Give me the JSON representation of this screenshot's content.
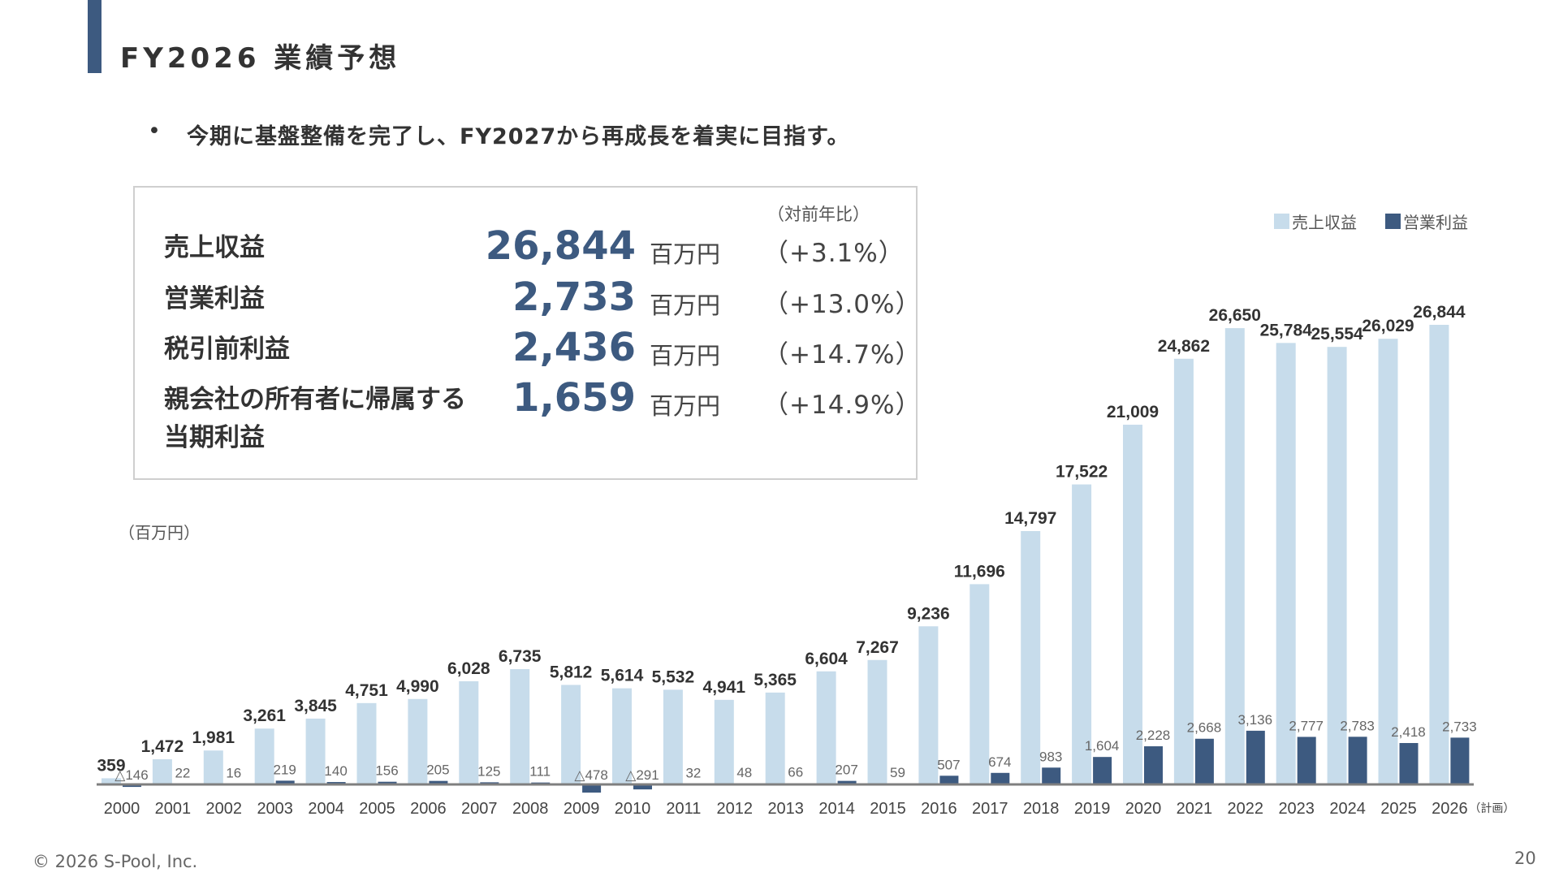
{
  "header": {
    "title": "FY2026 業績予想"
  },
  "bullet": {
    "marker": "•",
    "text": "今期に基盤整備を完了し、FY2027から再成長を着実に目指す。"
  },
  "summary": {
    "yoy_header": "（対前年比）",
    "rows": [
      {
        "label": "売上収益",
        "value": "26,844",
        "unit": "百万円",
        "yoy": "（+3.1%）"
      },
      {
        "label": "営業利益",
        "value": "2,733",
        "unit": "百万円",
        "yoy": "（+13.0%）"
      },
      {
        "label": "税引前利益",
        "value": "2,436",
        "unit": "百万円",
        "yoy": "（+14.7%）"
      },
      {
        "label": "親会社の所有者に帰属する",
        "label2": "当期利益",
        "value": "1,659",
        "unit": "百万円",
        "yoy": "（+14.9%）"
      }
    ]
  },
  "chart_data": {
    "type": "bar",
    "unit_label": "（百万円）",
    "categories": [
      "2000",
      "2001",
      "2002",
      "2003",
      "2004",
      "2005",
      "2006",
      "2007",
      "2008",
      "2009",
      "2010",
      "2011",
      "2012",
      "2013",
      "2014",
      "2015",
      "2016",
      "2017",
      "2018",
      "2019",
      "2020",
      "2021",
      "2022",
      "2023",
      "2024",
      "2025",
      "2026"
    ],
    "last_category_note": "（計画）",
    "legend_position": "top-right",
    "grid": false,
    "series": [
      {
        "name": "売上収益",
        "color": "#c7dceb",
        "values": [
          359,
          1472,
          1981,
          3261,
          3845,
          4751,
          4990,
          6028,
          6735,
          5812,
          5614,
          5532,
          4941,
          5365,
          6604,
          7267,
          9236,
          11696,
          14797,
          17522,
          21009,
          24862,
          26650,
          25784,
          25554,
          26029,
          26844
        ],
        "labels": [
          "359",
          "1,472",
          "1,981",
          "3,261",
          "3,845",
          "4,751",
          "4,990",
          "6,028",
          "6,735",
          "5,812",
          "5,614",
          "5,532",
          "4,941",
          "5,365",
          "6,604",
          "7,267",
          "9,236",
          "11,696",
          "14,797",
          "17,522",
          "21,009",
          "24,862",
          "26,650",
          "25,784",
          "25,554",
          "26,029",
          "26,844"
        ]
      },
      {
        "name": "営業利益",
        "color": "#3d5a80",
        "values": [
          -146,
          22,
          16,
          219,
          140,
          156,
          205,
          125,
          111,
          -478,
          -291,
          32,
          48,
          66,
          207,
          59,
          507,
          674,
          983,
          1604,
          2228,
          2668,
          3136,
          2777,
          2783,
          2418,
          2733
        ],
        "labels": [
          "△146",
          "22",
          "16",
          "219",
          "140",
          "156",
          "205",
          "125",
          "111",
          "△478",
          "△291",
          "32",
          "48",
          "66",
          "207",
          "59",
          "507",
          "674",
          "983",
          "1,604",
          "2,228",
          "2,668",
          "3,136",
          "2,777",
          "2,783",
          "2,418",
          "2,733"
        ]
      }
    ]
  },
  "footer": {
    "copyright": "© 2026 S-Pool, Inc.",
    "page": "20"
  }
}
